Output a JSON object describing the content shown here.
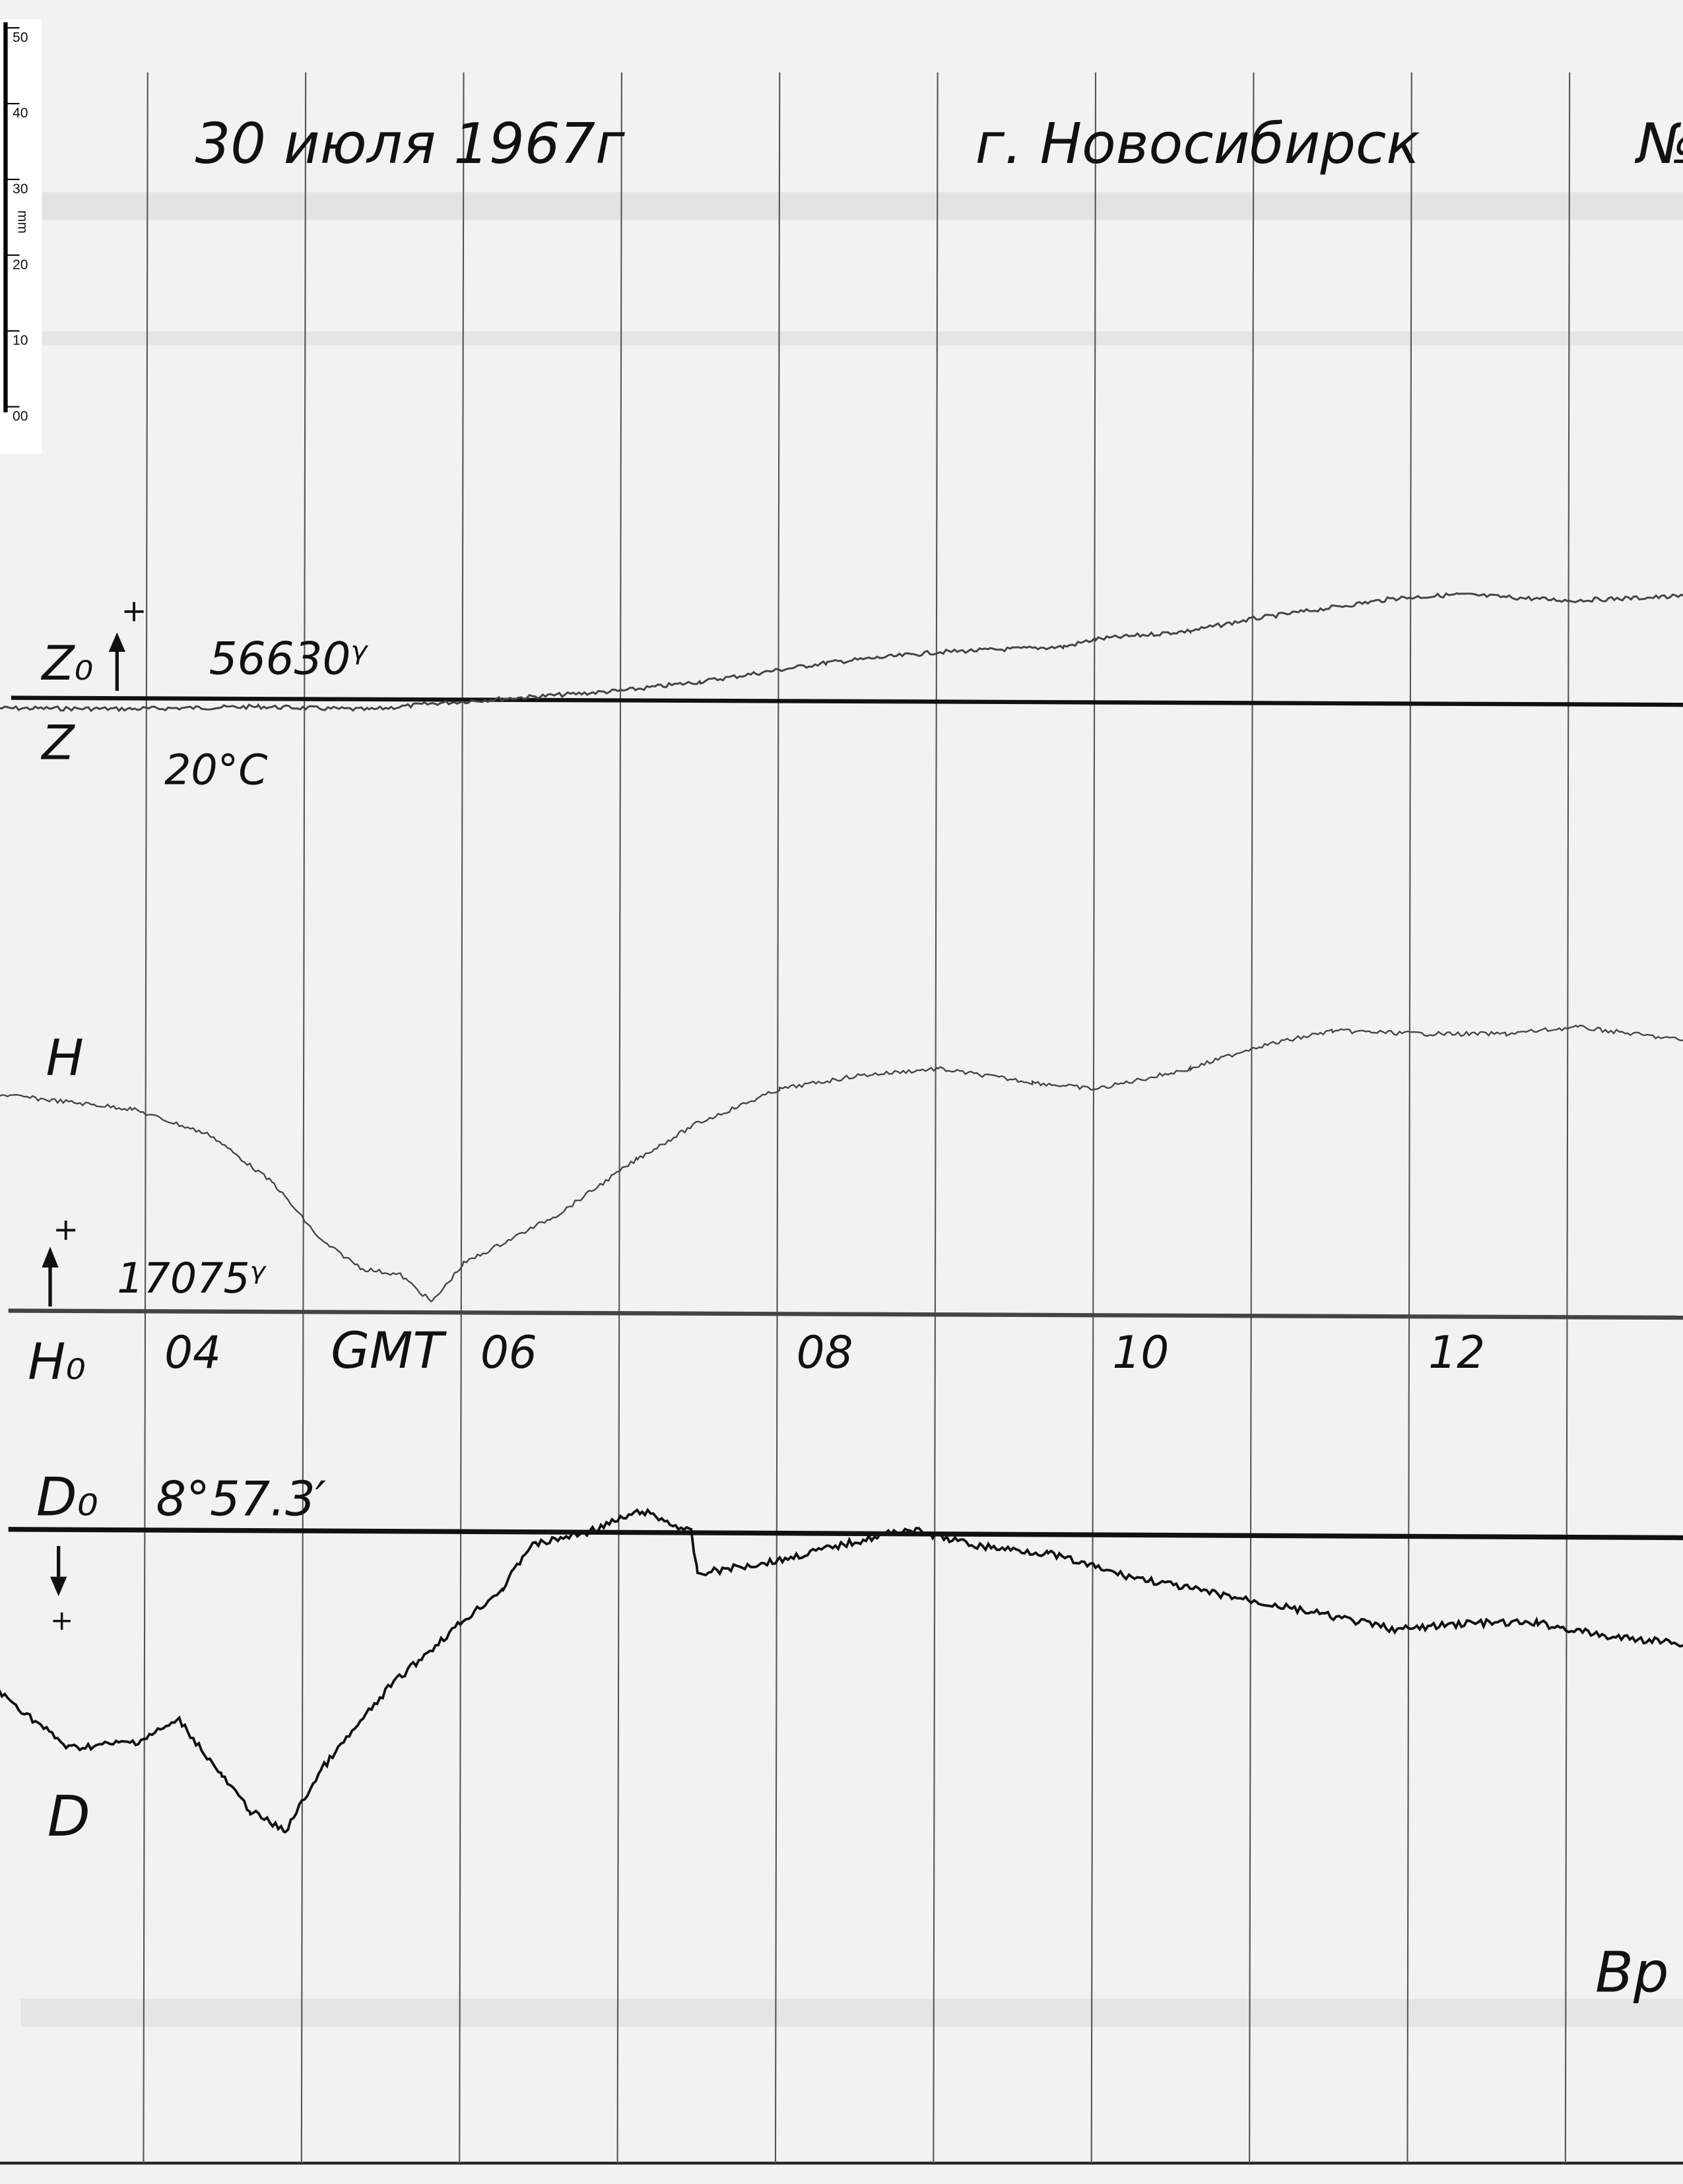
{
  "header": {
    "date": "30 июля 1967г",
    "city": "г. Новосибирск",
    "number_partial": "№"
  },
  "ruler": {
    "unit": "mm",
    "ticks": [
      "50",
      "40",
      "30",
      "20",
      "10",
      "00"
    ]
  },
  "labels": {
    "z0": "Z₀",
    "z_plus": "+",
    "z0_value": "56630ᵞ",
    "z": "Z",
    "temperature": "20°C",
    "h": "H",
    "h_plus": "+",
    "h0_value": "17075ᵞ",
    "h0": "H₀",
    "d0": "D₀",
    "d0_value": "8°57.3′",
    "d_plus": "+",
    "d": "D",
    "footer_partial": "Вр"
  },
  "chart_data": {
    "type": "line",
    "x_unit": "GMT",
    "xticks": [
      {
        "hour": 4,
        "label": "04"
      },
      {
        "hour": 5,
        "label": "GMT"
      },
      {
        "hour": 6,
        "label": "06"
      },
      {
        "hour": 8,
        "label": "08"
      },
      {
        "hour": 10,
        "label": "10"
      },
      {
        "hour": 12,
        "label": "12"
      }
    ],
    "hour_gridlines": [
      4,
      5,
      6,
      7,
      8,
      9,
      10,
      11,
      12,
      13
    ],
    "xlim": [
      3.06,
      13.75
    ],
    "grid": true,
    "series": [
      {
        "name": "Z",
        "baseline": "Z₀ 56630γ",
        "direction": "up positive",
        "x": [
          3.06,
          3.9,
          4.7,
          5.4,
          5.8,
          6.5,
          7.0,
          7.5,
          8.3,
          9.0,
          9.8,
          10.0,
          10.6,
          11.0,
          11.9,
          12.3,
          13.0,
          13.75
        ],
        "y": [
          -1.0,
          -1.1,
          -0.8,
          -1.2,
          -0.4,
          0.6,
          1.3,
          2.5,
          5.0,
          6.4,
          7.1,
          8.1,
          9.2,
          10.8,
          13.5,
          14.0,
          13.2,
          13.8
        ]
      },
      {
        "name": "H",
        "baseline": "H₀ 17075γ",
        "direction": "up positive",
        "x": [
          3.06,
          3.9,
          4.4,
          4.8,
          5.1,
          5.36,
          5.6,
          5.8,
          6.0,
          6.6,
          7.1,
          7.47,
          8.0,
          8.5,
          9.0,
          9.6,
          10.0,
          10.6,
          11.0,
          11.5,
          12.1,
          12.6,
          13.05,
          13.75
        ],
        "y": [
          28.9,
          27.0,
          23.5,
          17.1,
          9.6,
          5.9,
          5.1,
          1.5,
          6.6,
          13.1,
          20.4,
          25.0,
          29.6,
          31.4,
          32.3,
          30.5,
          29.6,
          32.3,
          35.1,
          37.3,
          36.9,
          36.9,
          37.8,
          36.0
        ]
      },
      {
        "name": "D",
        "baseline": "D₀ 8°57.3′",
        "direction": "down positive",
        "x": [
          3.06,
          3.5,
          3.94,
          4.2,
          4.47,
          4.65,
          4.87,
          5.1,
          5.54,
          5.98,
          6.25,
          6.42,
          6.78,
          7.13,
          7.44,
          7.48,
          8.0,
          8.37,
          8.81,
          9.25,
          9.7,
          10.14,
          10.58,
          11.03,
          11.47,
          11.91,
          12.35,
          12.8,
          13.24,
          13.75
        ],
        "y": [
          21.1,
          28.5,
          27.6,
          24.8,
          32.2,
          36.8,
          39.5,
          31.3,
          20.2,
          12.0,
          7.4,
          1.8,
          0.0,
          -2.8,
          0.0,
          5.5,
          3.7,
          1.8,
          -0.4,
          1.8,
          2.8,
          5.5,
          7.4,
          9.2,
          11.0,
          12.9,
          12.0,
          12.0,
          13.8,
          14.7
        ]
      }
    ]
  },
  "colors": {
    "paper": "#f2f2f2",
    "ink": "#111111",
    "grid": "#555555",
    "trace": "#333333"
  }
}
